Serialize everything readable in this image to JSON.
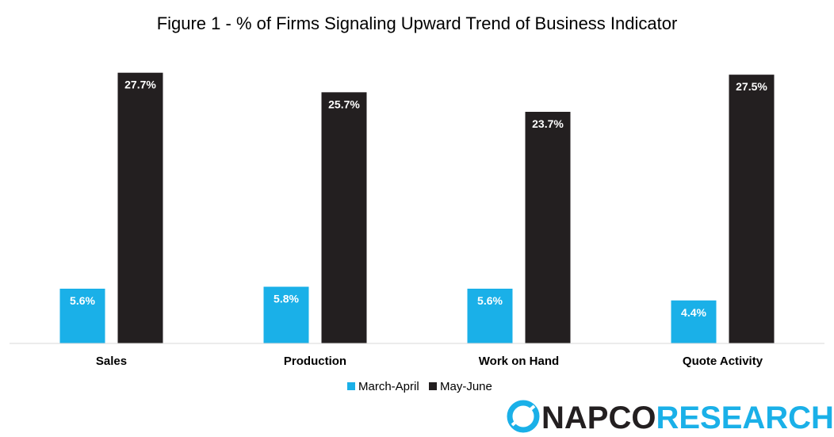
{
  "chart_data": {
    "type": "bar",
    "title": "Figure 1 - % of Firms Signaling Upward Trend of Business Indicator",
    "categories": [
      "Sales",
      "Production",
      "Work on Hand",
      "Quote Activity"
    ],
    "series": [
      {
        "name": "March-April",
        "color": "#1ab0e8",
        "values": [
          5.6,
          5.8,
          5.6,
          4.4
        ],
        "labels": [
          "5.6%",
          "5.8%",
          "5.6%",
          "4.4%"
        ]
      },
      {
        "name": "May-June",
        "color": "#231f20",
        "values": [
          27.7,
          25.7,
          23.7,
          27.5
        ],
        "labels": [
          "27.7%",
          "25.7%",
          "23.7%",
          "27.5%"
        ]
      }
    ],
    "xlabel": "",
    "ylabel": "",
    "ylim": [
      0,
      28
    ],
    "grid": false,
    "legend_position": "bottom"
  },
  "logo": {
    "part1": "NAPCO",
    "part2": "RESEARCH",
    "color1": "#231f20",
    "color2": "#1ab0e8"
  }
}
